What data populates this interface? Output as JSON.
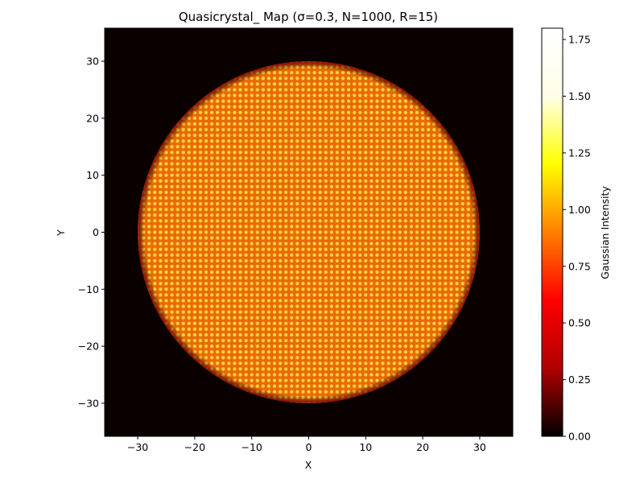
{
  "chart_data": {
    "type": "heatmap",
    "title": "Quasicrystal_ Map (σ=0.3, N=1000, R=15)",
    "xlabel": "X",
    "ylabel": "Y",
    "xlim": [
      -35.8,
      35.8
    ],
    "ylim": [
      -35.8,
      35.8
    ],
    "x_ticks": [
      -30,
      -20,
      -10,
      0,
      10,
      20,
      30
    ],
    "y_ticks": [
      -30,
      -20,
      -10,
      0,
      10,
      20,
      30
    ],
    "x_tick_labels": [
      "−30",
      "−20",
      "−10",
      "0",
      "10",
      "20",
      "30"
    ],
    "y_tick_labels": [
      "−30",
      "−20",
      "−10",
      "0",
      "10",
      "20",
      "30"
    ],
    "grid": false,
    "colormap": "hot",
    "colormap_stops": [
      "#000000",
      "#b00000",
      "#ff0000",
      "#ff8000",
      "#ffff00",
      "#ffffe8",
      "#ffffff"
    ],
    "background_color": "#0b0000",
    "pattern": {
      "shape": "disk",
      "disk_radius": 30,
      "lattice_spacing": 1.0,
      "tile_color": "#e86a0a",
      "dot_color": "#ffd23a"
    },
    "colorbar": {
      "label": "Gaussian Intensity",
      "range": [
        0.0,
        1.8
      ],
      "ticks": [
        0.0,
        0.25,
        0.5,
        0.75,
        1.0,
        1.25,
        1.5,
        1.75
      ],
      "tick_labels": [
        "0.00",
        "0.25",
        "0.50",
        "0.75",
        "1.00",
        "1.25",
        "1.50",
        "1.75"
      ],
      "position": "right"
    }
  }
}
